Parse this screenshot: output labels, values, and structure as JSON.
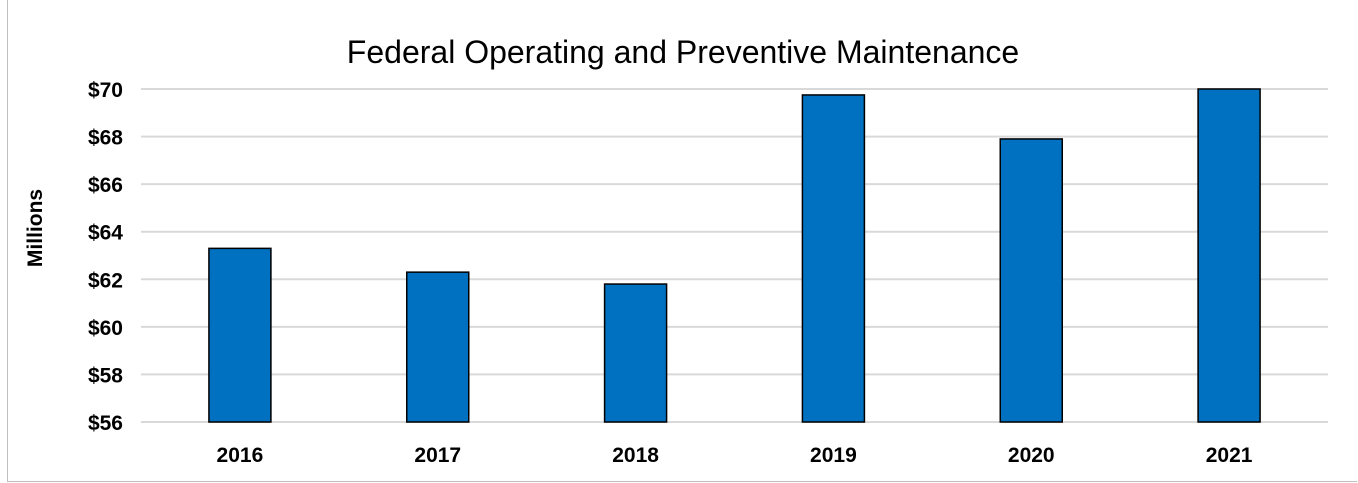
{
  "chart_data": {
    "type": "bar",
    "title": "Federal Operating and Preventive Maintenance",
    "xlabel": "",
    "ylabel": "Millions",
    "categories": [
      "2016",
      "2017",
      "2018",
      "2019",
      "2020",
      "2021"
    ],
    "values": [
      63.3,
      62.3,
      61.8,
      69.75,
      67.9,
      70.0
    ],
    "ylim": [
      56,
      70
    ],
    "yticks": [
      56,
      58,
      60,
      62,
      64,
      66,
      68,
      70
    ],
    "ytick_labels": [
      "$56",
      "$58",
      "$60",
      "$62",
      "$64",
      "$66",
      "$68",
      "$70"
    ],
    "grid": true,
    "legend": "none",
    "colors": {
      "bar": "#0070c0",
      "bar_edge": "#000000",
      "grid": "#d9d9d9",
      "frame": "#bfbfbf"
    }
  }
}
